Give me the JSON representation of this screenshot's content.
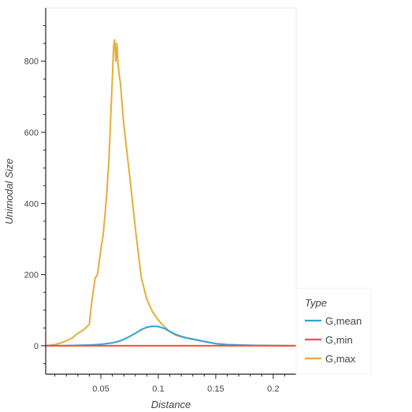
{
  "chart_data": {
    "type": "line",
    "title": "",
    "xlabel": "Distance",
    "ylabel": "Unimodal Size",
    "xlim": [
      0.002,
      0.22
    ],
    "ylim": [
      -80,
      950
    ],
    "x_ticks": [
      0.05,
      0.1,
      0.15,
      0.2
    ],
    "x_tick_labels": [
      "0.05",
      "0.1",
      "0.15",
      "0.2"
    ],
    "y_ticks": [
      0,
      200,
      400,
      600,
      800
    ],
    "y_tick_labels": [
      "0",
      "200",
      "400",
      "600",
      "800"
    ],
    "grid": false,
    "legend": {
      "title": "Type",
      "placement": "bottom-right-outside"
    },
    "series": [
      {
        "name": "G,mean",
        "color": "#30a2da",
        "x": [
          0.002,
          0.02,
          0.03,
          0.04,
          0.05,
          0.06,
          0.065,
          0.07,
          0.075,
          0.08,
          0.085,
          0.09,
          0.095,
          0.1,
          0.105,
          0.11,
          0.115,
          0.12,
          0.125,
          0.13,
          0.14,
          0.15,
          0.16,
          0.18,
          0.2,
          0.22
        ],
        "y": [
          0,
          0.5,
          1,
          2,
          4,
          8,
          12,
          18,
          26,
          35,
          45,
          52,
          55,
          54,
          49,
          40,
          32,
          26,
          22,
          19,
          12,
          6,
          3,
          1,
          0.5,
          0
        ]
      },
      {
        "name": "G,min",
        "color": "#fc4f30",
        "x": [
          0.002,
          0.22
        ],
        "y": [
          0,
          0
        ]
      },
      {
        "name": "G,max",
        "color": "#e5ae38",
        "x": [
          0.002,
          0.01,
          0.015,
          0.02,
          0.025,
          0.03,
          0.035,
          0.04,
          0.042,
          0.045,
          0.047,
          0.05,
          0.052,
          0.055,
          0.057,
          0.06,
          0.061,
          0.062,
          0.063,
          0.064,
          0.065,
          0.066,
          0.067,
          0.07,
          0.075,
          0.08,
          0.085,
          0.09,
          0.095,
          0.1,
          0.105,
          0.11,
          0.115,
          0.12,
          0.13,
          0.14,
          0.15,
          0.16,
          0.18,
          0.2,
          0.22
        ],
        "y": [
          0,
          3,
          8,
          14,
          22,
          35,
          45,
          60,
          120,
          190,
          200,
          270,
          310,
          420,
          520,
          750,
          840,
          860,
          800,
          850,
          790,
          760,
          740,
          620,
          480,
          330,
          195,
          130,
          95,
          72,
          55,
          40,
          30,
          25,
          18,
          12,
          6,
          3,
          1,
          0.5,
          0
        ]
      }
    ]
  }
}
